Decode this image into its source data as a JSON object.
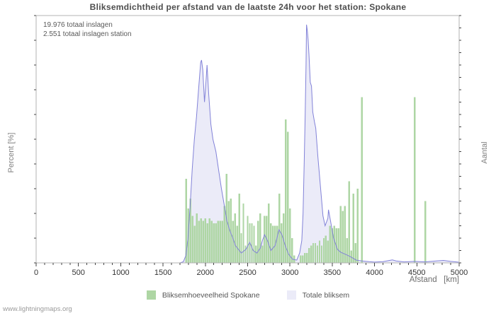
{
  "footer": {
    "watermark": "www.lightningmaps.org"
  },
  "chart_data": {
    "type": "area+bar",
    "title": "Bliksemdichtheid per afstand van de laatste 24h voor het station: Spokane",
    "annotations": [
      "19.976 totaal inslagen",
      "2.551 totaal inslagen station"
    ],
    "x_axis": {
      "label": "Afstand   [km]",
      "min": 0,
      "max": 5000,
      "major_tick": 500,
      "minor_tick": 100
    },
    "y_left": {
      "label": "Percent  [%]",
      "min": 0,
      "max": 100,
      "major_tick": 20,
      "minor_tick": 10
    },
    "y_right": {
      "label": "Aantal",
      "min": 0,
      "max": 1000,
      "major_tick": 100,
      "minor_tick": 50
    },
    "grid": "horizontal-major",
    "legend_position": "bottom-center",
    "colors": {
      "bar": "#aed6a4",
      "area_fill": "#ebebf8",
      "area_line": "#8282d8",
      "grid": "#cfcfcf",
      "border": "#b3b3b3",
      "tick": "#444444",
      "tick_label": "#333333"
    },
    "series": [
      {
        "name": "Bliksemhoeveelheid Spokane",
        "type": "bar",
        "axis": "left",
        "color": "#aed6a4",
        "points": [
          [
            1775,
            34
          ],
          [
            1800,
            22
          ],
          [
            1825,
            26
          ],
          [
            1850,
            19
          ],
          [
            1875,
            15
          ],
          [
            1900,
            20
          ],
          [
            1925,
            17
          ],
          [
            1950,
            18
          ],
          [
            1975,
            17
          ],
          [
            2000,
            18
          ],
          [
            2025,
            16
          ],
          [
            2050,
            18
          ],
          [
            2075,
            17
          ],
          [
            2100,
            16
          ],
          [
            2125,
            16
          ],
          [
            2150,
            17
          ],
          [
            2175,
            17
          ],
          [
            2200,
            17
          ],
          [
            2225,
            23
          ],
          [
            2250,
            36
          ],
          [
            2275,
            25
          ],
          [
            2300,
            26
          ],
          [
            2325,
            17
          ],
          [
            2350,
            20
          ],
          [
            2375,
            15
          ],
          [
            2400,
            28
          ],
          [
            2425,
            12
          ],
          [
            2450,
            24
          ],
          [
            2475,
            7
          ],
          [
            2500,
            19
          ],
          [
            2525,
            16
          ],
          [
            2550,
            16
          ],
          [
            2575,
            15
          ],
          [
            2600,
            7
          ],
          [
            2625,
            17
          ],
          [
            2650,
            20
          ],
          [
            2675,
            7
          ],
          [
            2700,
            19
          ],
          [
            2725,
            19
          ],
          [
            2750,
            24
          ],
          [
            2775,
            16
          ],
          [
            2800,
            15
          ],
          [
            2825,
            15
          ],
          [
            2850,
            15
          ],
          [
            2875,
            28
          ],
          [
            2900,
            16
          ],
          [
            2925,
            20
          ],
          [
            2950,
            58
          ],
          [
            2975,
            53
          ],
          [
            3000,
            22
          ],
          [
            3025,
            10
          ],
          [
            3050,
            3
          ],
          [
            3125,
            3
          ],
          [
            3150,
            3
          ],
          [
            3175,
            4
          ],
          [
            3200,
            4
          ],
          [
            3225,
            6
          ],
          [
            3250,
            7
          ],
          [
            3275,
            8
          ],
          [
            3300,
            8
          ],
          [
            3325,
            7
          ],
          [
            3350,
            9
          ],
          [
            3375,
            7
          ],
          [
            3400,
            10
          ],
          [
            3425,
            11
          ],
          [
            3450,
            9
          ],
          [
            3475,
            15
          ],
          [
            3500,
            14
          ],
          [
            3525,
            15
          ],
          [
            3550,
            14
          ],
          [
            3575,
            14
          ],
          [
            3600,
            23
          ],
          [
            3625,
            21
          ],
          [
            3650,
            23
          ],
          [
            3675,
            10
          ],
          [
            3700,
            33
          ],
          [
            3725,
            5
          ],
          [
            3750,
            28
          ],
          [
            3775,
            8
          ],
          [
            3800,
            30
          ],
          [
            3850,
            67
          ],
          [
            4475,
            67
          ],
          [
            4600,
            25
          ]
        ]
      },
      {
        "name": "Totale bliksem",
        "type": "area",
        "axis": "right",
        "fill": "#ebebf8",
        "stroke": "#8282d8",
        "points": [
          [
            0,
            0
          ],
          [
            1700,
            0
          ],
          [
            1740,
            5
          ],
          [
            1770,
            30
          ],
          [
            1795,
            100
          ],
          [
            1820,
            230
          ],
          [
            1845,
            380
          ],
          [
            1870,
            500
          ],
          [
            1895,
            590
          ],
          [
            1920,
            700
          ],
          [
            1945,
            810
          ],
          [
            1955,
            820
          ],
          [
            1970,
            780
          ],
          [
            1990,
            650
          ],
          [
            2005,
            720
          ],
          [
            2020,
            800
          ],
          [
            2040,
            680
          ],
          [
            2065,
            560
          ],
          [
            2090,
            500
          ],
          [
            2125,
            450
          ],
          [
            2155,
            380
          ],
          [
            2190,
            300
          ],
          [
            2225,
            230
          ],
          [
            2255,
            170
          ],
          [
            2290,
            130
          ],
          [
            2325,
            100
          ],
          [
            2355,
            70
          ],
          [
            2390,
            55
          ],
          [
            2425,
            40
          ],
          [
            2480,
            55
          ],
          [
            2525,
            83
          ],
          [
            2565,
            50
          ],
          [
            2610,
            40
          ],
          [
            2650,
            60
          ],
          [
            2675,
            91
          ],
          [
            2700,
            114
          ],
          [
            2735,
            90
          ],
          [
            2775,
            50
          ],
          [
            2825,
            70
          ],
          [
            2870,
            134
          ],
          [
            2905,
            114
          ],
          [
            2945,
            70
          ],
          [
            2985,
            35
          ],
          [
            3030,
            15
          ],
          [
            3080,
            11
          ],
          [
            3115,
            40
          ],
          [
            3140,
            90
          ],
          [
            3155,
            200
          ],
          [
            3170,
            430
          ],
          [
            3180,
            600
          ],
          [
            3190,
            800
          ],
          [
            3196,
            963
          ],
          [
            3205,
            940
          ],
          [
            3215,
            900
          ],
          [
            3225,
            840
          ],
          [
            3240,
            730
          ],
          [
            3255,
            715
          ],
          [
            3270,
            610
          ],
          [
            3290,
            570
          ],
          [
            3305,
            545
          ],
          [
            3330,
            430
          ],
          [
            3365,
            290
          ],
          [
            3390,
            190
          ],
          [
            3415,
            150
          ],
          [
            3448,
            180
          ],
          [
            3456,
            215
          ],
          [
            3490,
            150
          ],
          [
            3515,
            100
          ],
          [
            3560,
            55
          ],
          [
            3600,
            43
          ],
          [
            3660,
            34
          ],
          [
            3710,
            26
          ],
          [
            3785,
            11
          ],
          [
            3850,
            8
          ],
          [
            3935,
            5
          ],
          [
            4000,
            3
          ],
          [
            4100,
            5
          ],
          [
            4210,
            12
          ],
          [
            4255,
            8
          ],
          [
            4350,
            4
          ],
          [
            4470,
            6
          ],
          [
            4600,
            4
          ],
          [
            4730,
            8
          ],
          [
            4815,
            10
          ],
          [
            4900,
            6
          ],
          [
            4985,
            3
          ],
          [
            5000,
            2
          ]
        ]
      }
    ]
  }
}
